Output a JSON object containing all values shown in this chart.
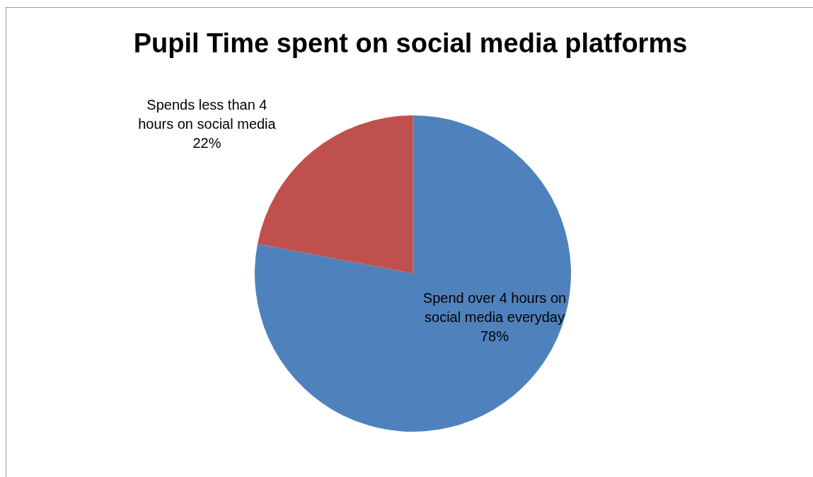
{
  "chart_data": {
    "type": "pie",
    "title": "Pupil Time spent on social media platforms",
    "categories": [
      "Spend over 4 hours on social media everyday",
      "Spends less than 4 hours on social media"
    ],
    "values": [
      78,
      22
    ],
    "value_labels": [
      "78%",
      "22%"
    ],
    "colors": [
      "#4f81bd",
      "#c0504d"
    ],
    "legend": false
  }
}
